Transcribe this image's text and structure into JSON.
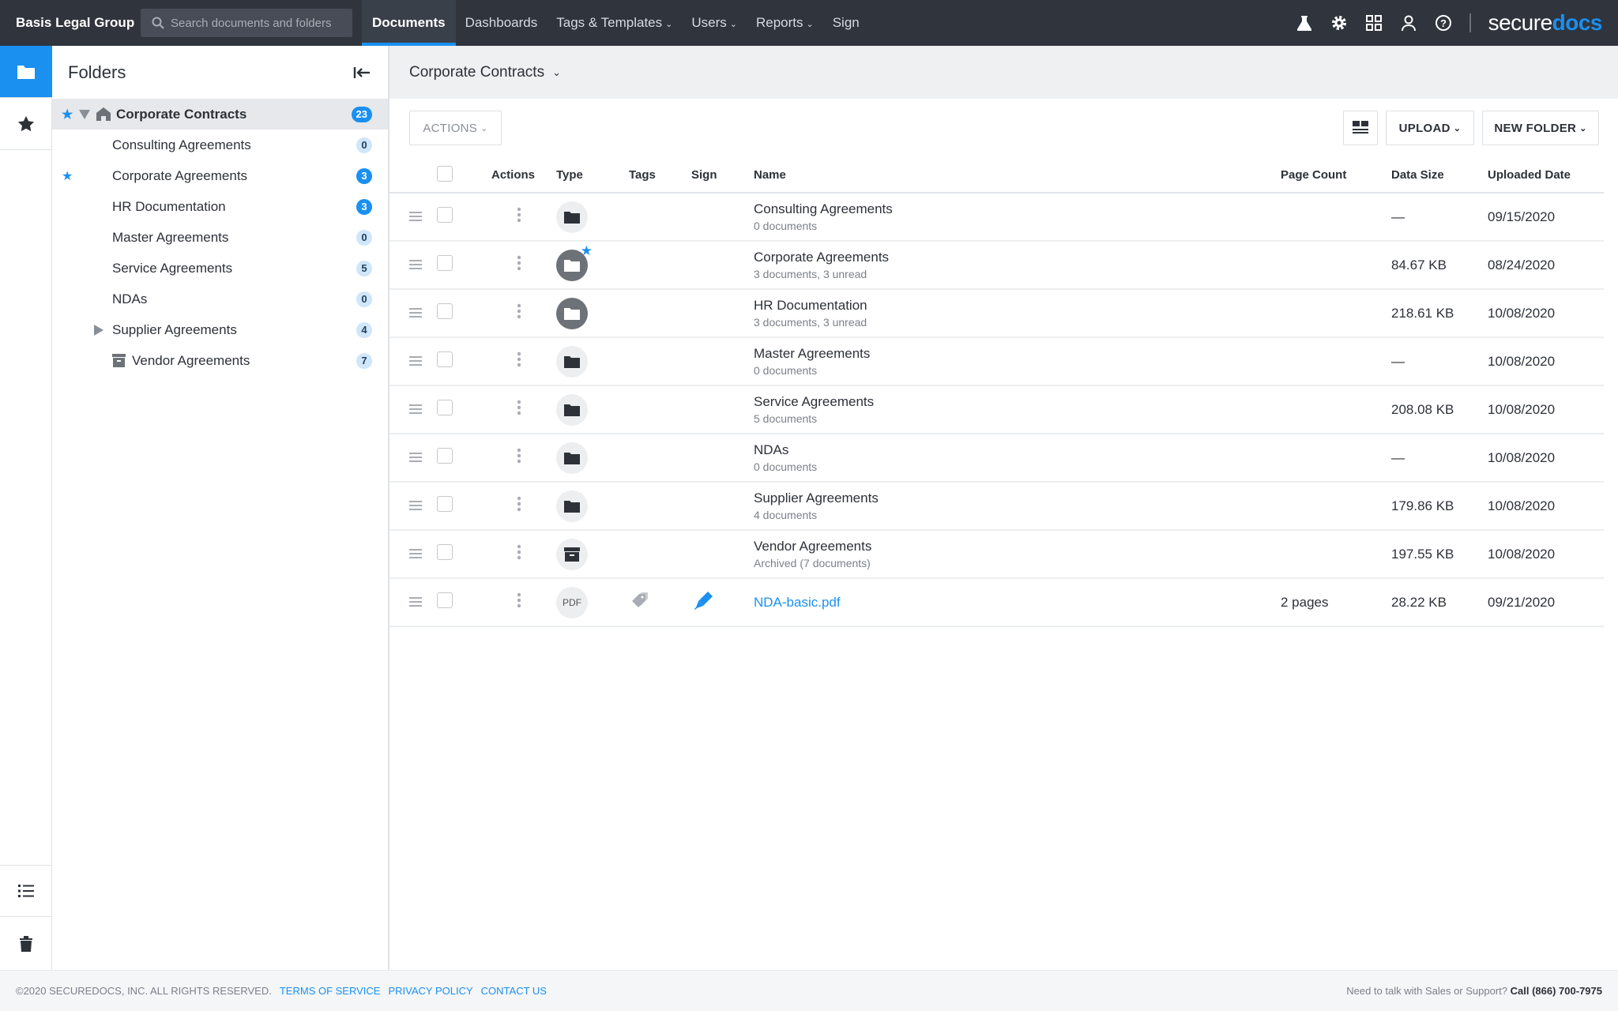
{
  "topbar": {
    "org": "Basis Legal Group",
    "search_placeholder": "Search documents and folders",
    "nav": [
      {
        "label": "Documents",
        "active": true
      },
      {
        "label": "Dashboards"
      },
      {
        "label": "Tags & Templates",
        "dropdown": true
      },
      {
        "label": "Users",
        "dropdown": true
      },
      {
        "label": "Reports",
        "dropdown": true
      },
      {
        "label": "Sign"
      }
    ],
    "icons": [
      "flask-icon",
      "gear-icon",
      "grid-icon",
      "user-icon",
      "help-icon"
    ],
    "logo_a": "secure",
    "logo_b": "docs"
  },
  "colors": {
    "accent": "#1a90f0",
    "topbar": "#2f343d"
  },
  "folders": {
    "title": "Folders",
    "root": {
      "label": "Corporate Contracts",
      "count": "23",
      "starred": true
    },
    "items": [
      {
        "label": "Consulting Agreements",
        "count": "0",
        "starred": false
      },
      {
        "label": "Corporate Agreements",
        "count": "3",
        "starred": true
      },
      {
        "label": "HR Documentation",
        "count": "3",
        "starred": false
      },
      {
        "label": "Master Agreements",
        "count": "0",
        "starred": false
      },
      {
        "label": "Service Agreements",
        "count": "5",
        "starred": false
      },
      {
        "label": "NDAs",
        "count": "0",
        "starred": false
      },
      {
        "label": "Supplier Agreements",
        "count": "4",
        "starred": false
      },
      {
        "label": "Vendor Agreements",
        "count": "7",
        "starred": false
      }
    ]
  },
  "main": {
    "breadcrumb": "Corporate Contracts",
    "actions": "ACTIONS",
    "upload": "UPLOAD",
    "new_folder": "NEW FOLDER",
    "columns": {
      "actions": "Actions",
      "type": "Type",
      "tags": "Tags",
      "sign": "Sign",
      "name": "Name",
      "pages": "Page Count",
      "size": "Data Size",
      "date": "Uploaded Date"
    },
    "rows": [
      {
        "name": "Consulting Agreements",
        "sub": "0 documents",
        "pages": "",
        "size": "—",
        "date": "09/15/2020"
      },
      {
        "name": "Corporate Agreements",
        "sub": "3 documents, 3 unread",
        "pages": "",
        "size": "84.67 KB",
        "date": "08/24/2020"
      },
      {
        "name": "HR Documentation",
        "sub": "3 documents, 3 unread",
        "pages": "",
        "size": "218.61 KB",
        "date": "10/08/2020"
      },
      {
        "name": "Master Agreements",
        "sub": "0 documents",
        "pages": "",
        "size": "—",
        "date": "10/08/2020"
      },
      {
        "name": "Service Agreements",
        "sub": "5 documents",
        "pages": "",
        "size": "208.08 KB",
        "date": "10/08/2020"
      },
      {
        "name": "NDAs",
        "sub": "0 documents",
        "pages": "",
        "size": "—",
        "date": "10/08/2020"
      },
      {
        "name": "Supplier Agreements",
        "sub": "4 documents",
        "pages": "",
        "size": "179.86 KB",
        "date": "10/08/2020"
      },
      {
        "name": "Vendor Agreements",
        "sub": "Archived (7 documents)",
        "pages": "",
        "size": "197.55 KB",
        "date": "10/08/2020"
      },
      {
        "name": "NDA-basic.pdf",
        "sub": "",
        "pages": "2 pages",
        "size": "28.22 KB",
        "date": "09/21/2020",
        "type_label": "PDF"
      }
    ]
  },
  "footer": {
    "copyright": "©2020 SECUREDOCS, INC. ALL RIGHTS RESERVED.",
    "terms": "TERMS OF SERVICE",
    "privacy": "PRIVACY POLICY",
    "contact": "CONTACT US",
    "support": "Need to talk with Sales or Support?",
    "phone": "Call (866) 700-7975"
  }
}
